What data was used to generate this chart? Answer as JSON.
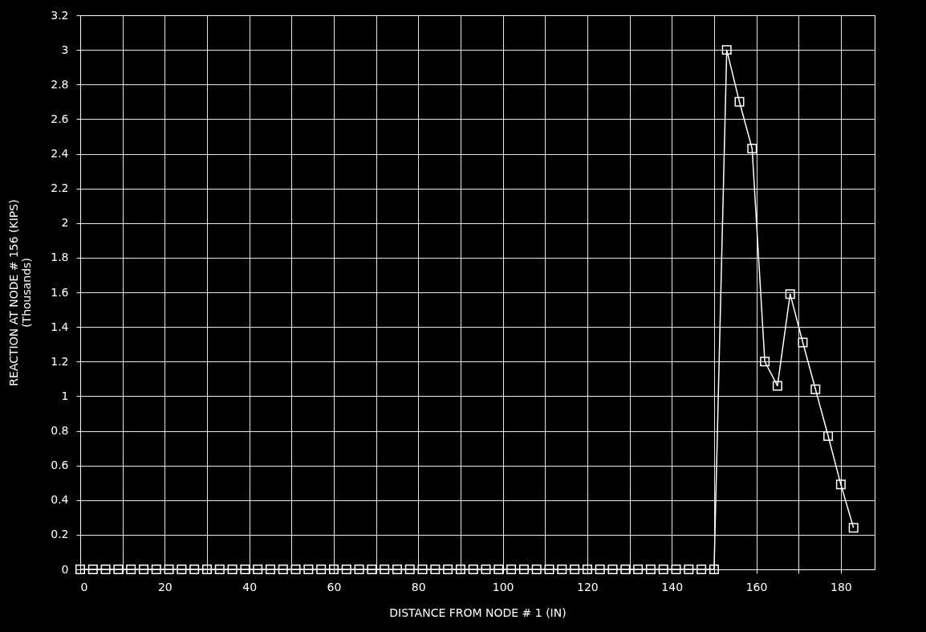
{
  "chart_data": {
    "type": "line",
    "xlabel": "DISTANCE FROM NODE # 1 (IN)",
    "ylabel": "REACTION AT NODE # 156 (KIPS)\n(Thousands)",
    "x": [
      0,
      3,
      6,
      9,
      12,
      15,
      18,
      21,
      24,
      27,
      30,
      33,
      36,
      39,
      42,
      45,
      48,
      51,
      54,
      57,
      60,
      63,
      66,
      69,
      72,
      75,
      78,
      81,
      84,
      87,
      90,
      93,
      96,
      99,
      102,
      105,
      108,
      111,
      114,
      117,
      120,
      123,
      126,
      129,
      132,
      135,
      138,
      141,
      144,
      147,
      150,
      153,
      156,
      159,
      162,
      165,
      168,
      171,
      174,
      177,
      180,
      183
    ],
    "series": [
      {
        "color": "#ffffff",
        "values": [
          0,
          0,
          0,
          0,
          0,
          0,
          0,
          0,
          0,
          0,
          0,
          0,
          0,
          0,
          0,
          0,
          0,
          0,
          0,
          0,
          0,
          0,
          0,
          0,
          0,
          0,
          0,
          0,
          0,
          0,
          0,
          0,
          0,
          0,
          0,
          0,
          0,
          0,
          0,
          0,
          0,
          0,
          0,
          0,
          0,
          0,
          0,
          0,
          0,
          0,
          0,
          3.0,
          2.7,
          2.43,
          1.2,
          1.06,
          1.59,
          1.31,
          1.04,
          0.77,
          0.49,
          0.24
        ]
      }
    ],
    "xlim": [
      0,
      188
    ],
    "ylim": [
      0,
      3.2
    ],
    "xticks": [
      0,
      {
        "value": 10,
        "label": null
      },
      20,
      {
        "value": 30,
        "label": null
      },
      40,
      {
        "value": 50,
        "label": null
      },
      60,
      {
        "value": 70,
        "label": null
      },
      80,
      {
        "value": 90,
        "label": null
      },
      100,
      {
        "value": 110,
        "label": null
      },
      120,
      {
        "value": 130,
        "label": null
      },
      140,
      {
        "value": 150,
        "label": null
      },
      160,
      {
        "value": 170,
        "label": null
      },
      180
    ],
    "yticks": [
      0,
      0.2,
      0.4,
      0.6,
      0.8,
      1,
      1.2,
      1.4,
      1.6,
      1.8,
      2,
      2.2,
      2.4,
      2.6,
      2.8,
      3,
      3.2
    ],
    "grid": true,
    "marker": "square",
    "line_style": "solid"
  }
}
